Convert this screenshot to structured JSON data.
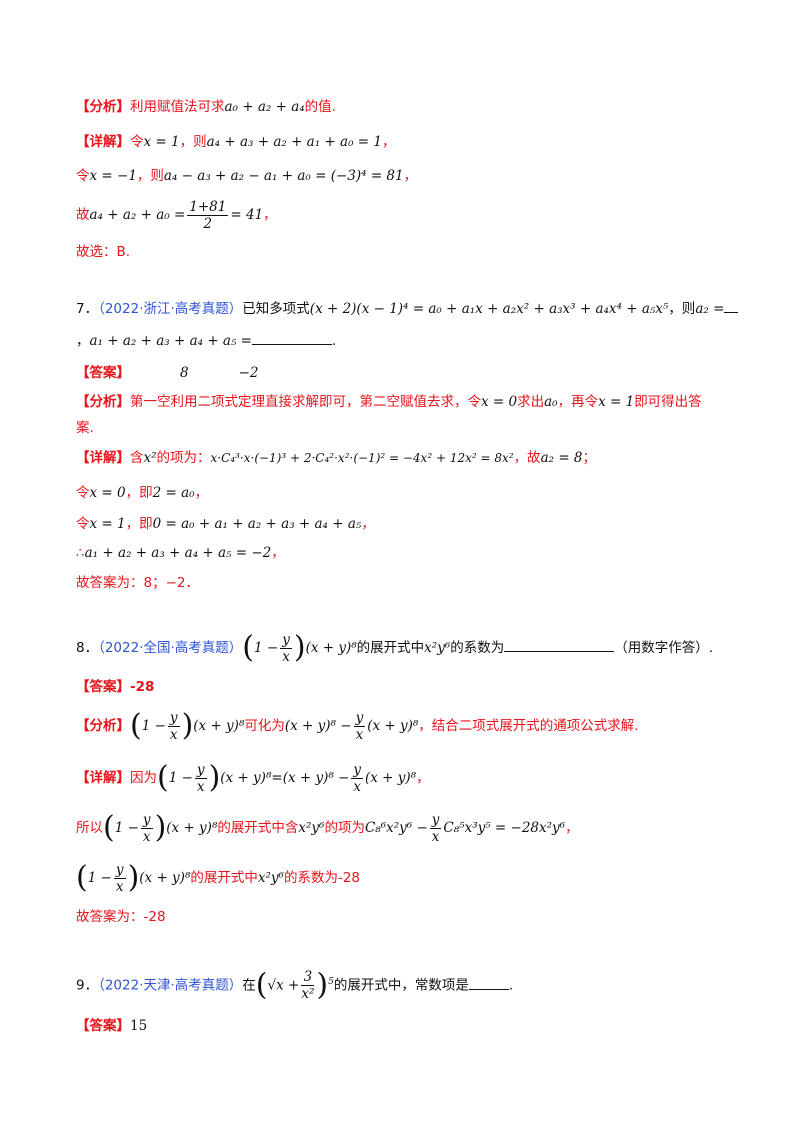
{
  "tags": {
    "analysis": "【分析】",
    "detail": "【详解】",
    "answer": "【答案】"
  },
  "b1": {
    "analysis_text": "利用赋值法可求",
    "analysis_expr": "a₀ + a₂ + a₄",
    "analysis_tail": "的值.",
    "d1_pre": "令",
    "d1_expr": "x = 1",
    "d1_mid": "，则",
    "d1_expr2": "a₄ + a₃ + a₂ + a₁ + a₀ = 1",
    "d1_end": "，",
    "d2_pre": "令",
    "d2_expr": "x = −1",
    "d2_mid": "，则",
    "d2_expr2": "a₄ − a₃ + a₂ − a₁ + a₀ = (−3)⁴ = 81",
    "d2_end": "，",
    "d3_pre": "故",
    "d3_expr": "a₄ + a₂ + a₀ =",
    "d3_num": "1+81",
    "d3_den": "2",
    "d3_tail": "= 41",
    "d3_end": "，",
    "conclusion": "故选：B."
  },
  "q7": {
    "number": "7．",
    "source": "（2022·浙江·高考真题）",
    "stem_pre": "已知多项式",
    "stem_expr": "(x + 2)(x − 1)⁴ = a₀ + a₁x + a₂x² + a₃x³ + a₄x⁴ + a₅x⁵",
    "stem_mid": "，则",
    "stem_expr2": "a₂ =",
    "line2_pre": "，",
    "line2_expr": "a₁ + a₂ + a₃ + a₄ + a₅ =",
    "line2_end": ".",
    "answer1": "8",
    "answer2": "−2",
    "analysis_l1": "第一空利用二项式定理直接求解即可，第二空赋值去求，令",
    "analysis_e1": "x = 0",
    "analysis_m1": "求出",
    "analysis_e2": "a₀",
    "analysis_m2": "，再令",
    "analysis_e3": "x = 1",
    "analysis_m3": "即可得出答",
    "analysis_l2": "案.",
    "detail_pre": "含",
    "detail_e1": "x²",
    "detail_m1": "的项为：",
    "detail_e2": "x·C₄³·x·(−1)³ + 2·C₄²·x²·(−1)² = −4x² + 12x² = 8x²",
    "detail_m2": "，故",
    "detail_e3": "a₂ = 8",
    "detail_end": "；",
    "l3_pre": "令",
    "l3_e1": "x = 0",
    "l3_mid": "，即",
    "l3_e2": "2 = a₀",
    "l3_end": "，",
    "l4_pre": "令",
    "l4_e1": "x = 1",
    "l4_mid": "，即",
    "l4_e2": "0 = a₀ + a₁ + a₂ + a₃ + a₄ + a₅",
    "l4_end": "，",
    "l5_pre": "∴",
    "l5_e": "a₁ + a₂ + a₃ + a₄ + a₅ = −2",
    "l5_end": "，",
    "conclusion": "故答案为：8；−2．"
  },
  "q8": {
    "number": "8．",
    "source": "（2022·全国·高考真题）",
    "stem_one": "1 −",
    "stem_y": "y",
    "stem_x": "x",
    "stem_rest": "(x + y)⁸",
    "stem_mid": "的展开式中",
    "stem_e": "x²y⁶",
    "stem_mid2": "的系数为",
    "stem_end": "（用数字作答）.",
    "answer": "-28",
    "analysis_mid": "可化为",
    "analysis_e1": "(x + y)⁸ −",
    "analysis_e2": "(x + y)⁸",
    "analysis_tail": "，结合二项式展开式的通项公式求解.",
    "detail_pre": "因为",
    "detail_eq": "=",
    "detail_end": "，",
    "l2_pre": "所以",
    "l2_mid": "的展开式中含",
    "l2_e": "x²y⁶",
    "l2_mid2": "的项为",
    "l2_e2a": "C₈⁶x²y⁶ −",
    "l2_e2b": "C₈⁵x³y⁵ = −28x²y⁶",
    "l2_end": "，",
    "l3_mid": "的展开式中",
    "l3_e": "x²y⁶",
    "l3_tail": "的系数为-28",
    "conclusion": "故答案为：-28"
  },
  "q9": {
    "number": "9．",
    "source": "（2022·天津·高考真题）",
    "stem_pre": "在",
    "stem_sqrt": "√x +",
    "stem_num": "3",
    "stem_den": "x²",
    "stem_pow": "5",
    "stem_mid": "的展开式中，常数项是",
    "stem_end": ".",
    "answer": "15"
  }
}
